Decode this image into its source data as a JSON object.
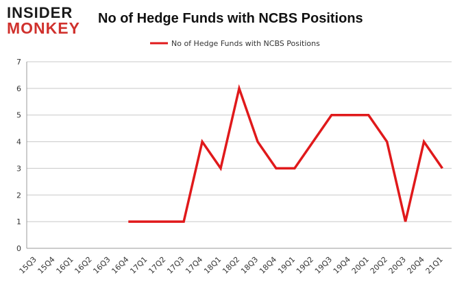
{
  "logo": {
    "line1": "INSIDER",
    "line2": "MONKEY"
  },
  "chart_data": {
    "type": "line",
    "title": "No of Hedge Funds with NCBS Positions",
    "xlabel": "",
    "ylabel": "",
    "categories": [
      "15Q3",
      "15Q4",
      "16Q1",
      "16Q2",
      "16Q3",
      "16Q4",
      "17Q1",
      "17Q2",
      "17Q3",
      "17Q4",
      "18Q1",
      "18Q2",
      "18Q3",
      "18Q4",
      "19Q1",
      "19Q2",
      "19Q3",
      "19Q4",
      "20Q1",
      "20Q2",
      "20Q3",
      "20Q4",
      "21Q1"
    ],
    "series": [
      {
        "name": "No of Hedge Funds with NCBS Positions",
        "color": "#e0191b",
        "values": [
          null,
          null,
          null,
          null,
          null,
          1,
          1,
          1,
          1,
          4,
          3,
          6,
          4,
          3,
          3,
          4,
          5,
          5,
          5,
          4,
          1,
          4,
          3
        ]
      }
    ],
    "ylim": [
      0,
      7
    ],
    "yticks": [
      0,
      1,
      2,
      3,
      4,
      5,
      6,
      7
    ],
    "grid": true,
    "legend_position": "top-center"
  }
}
